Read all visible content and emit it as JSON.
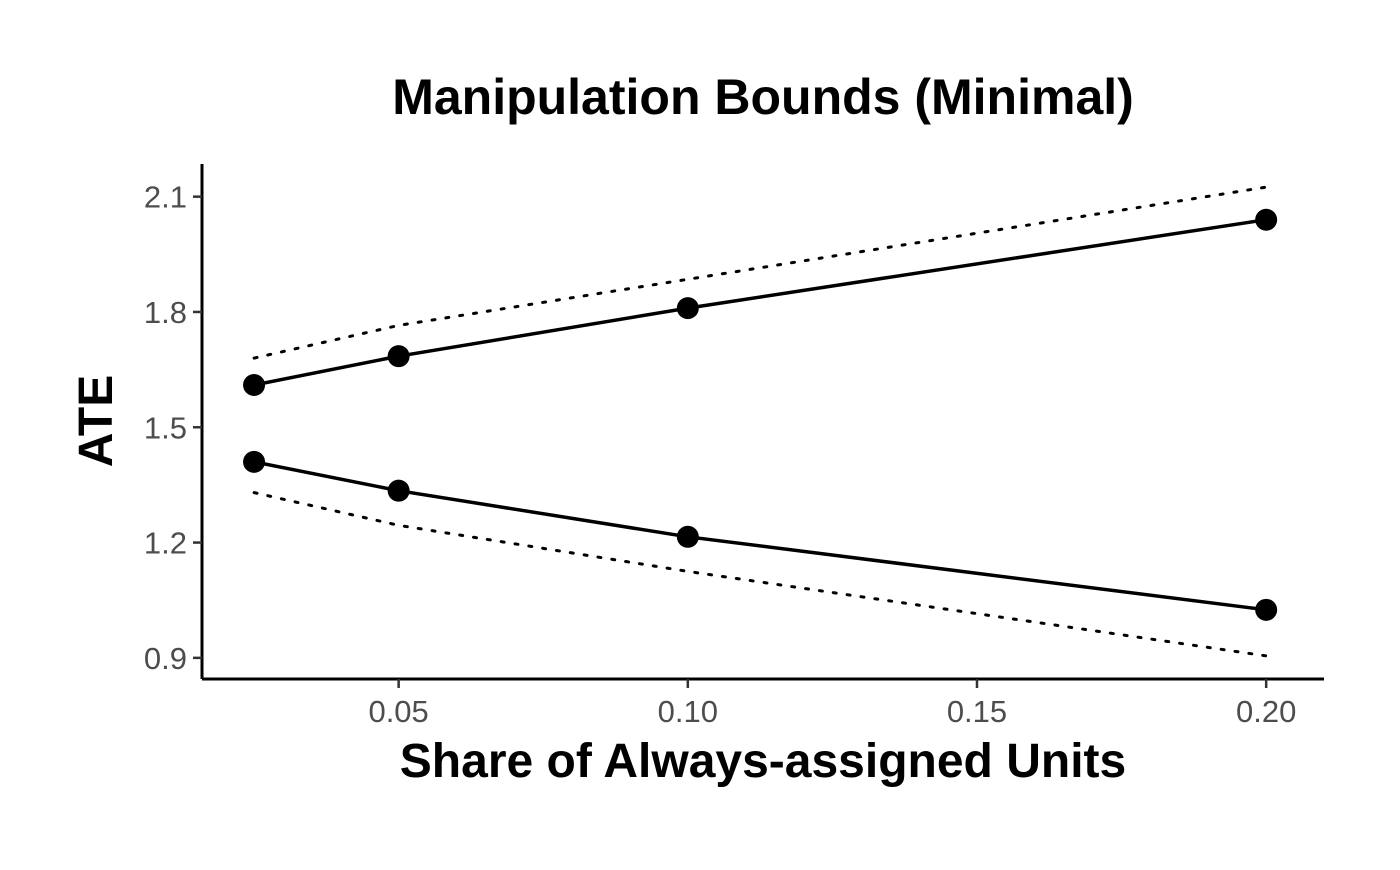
{
  "chart_data": {
    "type": "line",
    "title": "Manipulation Bounds (Minimal)",
    "xlabel": "Share of Always-assigned Units",
    "ylabel": "ATE",
    "x_ticks": [
      0.05,
      0.1,
      0.15,
      0.2
    ],
    "x_tick_labels": [
      "0.05",
      "0.10",
      "0.15",
      "0.20"
    ],
    "y_ticks": [
      0.9,
      1.2,
      1.5,
      1.8,
      2.1
    ],
    "y_tick_labels": [
      "0.9",
      "1.2",
      "1.5",
      "1.8",
      "2.1"
    ],
    "xlim": [
      0.016,
      0.21
    ],
    "ylim": [
      0.845,
      2.185
    ],
    "grid": false,
    "legend": "none",
    "x": [
      0.025,
      0.05,
      0.1,
      0.2
    ],
    "series": [
      {
        "style": "solid-with-points",
        "values": [
          1.61,
          1.685,
          1.81,
          2.04
        ]
      },
      {
        "style": "solid-with-points",
        "values": [
          1.41,
          1.335,
          1.215,
          1.025
        ]
      },
      {
        "style": "dotted",
        "values": [
          1.68,
          1.765,
          1.885,
          2.125
        ]
      },
      {
        "style": "dotted",
        "values": [
          1.33,
          1.245,
          1.125,
          0.905
        ]
      }
    ]
  }
}
